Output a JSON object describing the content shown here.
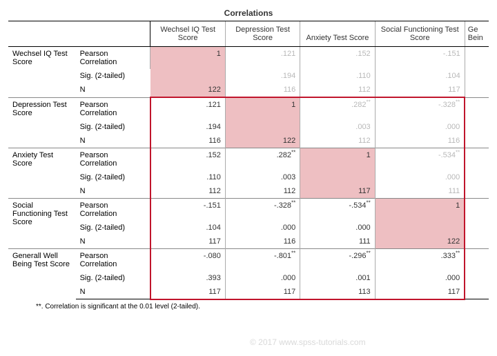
{
  "title": "Correlations",
  "columns": [
    "Wechsel IQ Test Score",
    "Depression Test Score",
    "Anxiety Test Score",
    "Social Functioning Test Score"
  ],
  "cut_column_visible_text": "Ge",
  "cut_column_line2": "Bein",
  "row_vars": [
    "Wechsel IQ Test Score",
    "Depression Test Score",
    "Anxiety Test Score",
    "Social Functioning Test Score",
    "Generall Well Being Test Score"
  ],
  "stat_labels": [
    "Pearson Correlation",
    "Sig. (2-tailed)",
    "N"
  ],
  "footnote": "**. Correlation is significant at the 0.01 level (2-tailed).",
  "copyright": "© 2017 www.spss-tutorials.com",
  "colors": {
    "diagonal_fill": "#eebfc2",
    "red_box_border": "#c0142b",
    "grey_text": "#b8b8b8",
    "copyright_text": "#d9d9d9"
  },
  "cells": {
    "r0": {
      "pearson": [
        "1",
        ".121",
        ".152",
        "-.151",
        ""
      ],
      "sig": [
        "",
        ".194",
        ".110",
        ".104",
        ""
      ],
      "n": [
        "122",
        "116",
        "112",
        "117",
        ""
      ],
      "stars": [
        "",
        "",
        "",
        "",
        ""
      ],
      "grey": [
        false,
        true,
        true,
        true,
        true
      ]
    },
    "r1": {
      "pearson": [
        ".121",
        "1",
        ".282",
        "-.328",
        ""
      ],
      "sig": [
        ".194",
        "",
        ".003",
        ".000",
        ""
      ],
      "n": [
        "116",
        "122",
        "112",
        "116",
        ""
      ],
      "stars": [
        "",
        "",
        "**",
        "**",
        ""
      ],
      "grey": [
        false,
        false,
        true,
        true,
        true
      ]
    },
    "r2": {
      "pearson": [
        ".152",
        ".282",
        "1",
        "-.534",
        ""
      ],
      "sig": [
        ".110",
        ".003",
        "",
        ".000",
        ""
      ],
      "n": [
        "112",
        "112",
        "117",
        "111",
        ""
      ],
      "stars": [
        "",
        "**",
        "",
        "**",
        ""
      ],
      "grey": [
        false,
        false,
        false,
        true,
        true
      ]
    },
    "r3": {
      "pearson": [
        "-.151",
        "-.328",
        "-.534",
        "1",
        ""
      ],
      "sig": [
        ".104",
        ".000",
        ".000",
        "",
        ""
      ],
      "n": [
        "117",
        "116",
        "111",
        "122",
        ""
      ],
      "stars": [
        "",
        "**",
        "**",
        "",
        ""
      ],
      "grey": [
        false,
        false,
        false,
        false,
        true
      ]
    },
    "r4": {
      "pearson": [
        "-.080",
        "-.801",
        "-.296",
        ".333",
        ""
      ],
      "sig": [
        ".393",
        ".000",
        ".001",
        ".000",
        ""
      ],
      "n": [
        "117",
        "117",
        "113",
        "117",
        ""
      ],
      "stars": [
        "",
        "**",
        "**",
        "**",
        ""
      ],
      "grey": [
        false,
        false,
        false,
        false,
        false
      ]
    }
  }
}
